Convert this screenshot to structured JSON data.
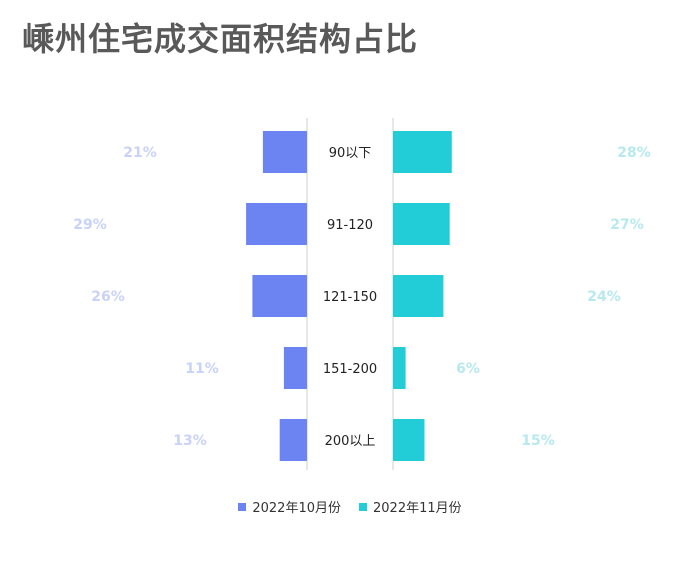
{
  "title": "嵊州住宅成交面积结构占比",
  "colors": {
    "left": "#6b84f2",
    "right": "#22cdd8",
    "left_label": "#c9d2f8",
    "right_label": "#b7e9ee",
    "axis": "#cfcfcf"
  },
  "chart_data": {
    "type": "bar",
    "orientation": "horizontal-butterfly",
    "categories": [
      "90以下",
      "91-120",
      "121-150",
      "151-200",
      "200以上"
    ],
    "series": [
      {
        "name": "2022年10月份",
        "values": [
          21,
          29,
          26,
          11,
          13
        ],
        "labels": [
          "21%",
          "29%",
          "26%",
          "11%",
          "13%"
        ]
      },
      {
        "name": "2022年11月份",
        "values": [
          28,
          27,
          24,
          6,
          15
        ],
        "labels": [
          "28%",
          "27%",
          "24%",
          "6%",
          "15%"
        ]
      }
    ],
    "unit": "%",
    "legend": "bottom-center",
    "grid": false
  }
}
